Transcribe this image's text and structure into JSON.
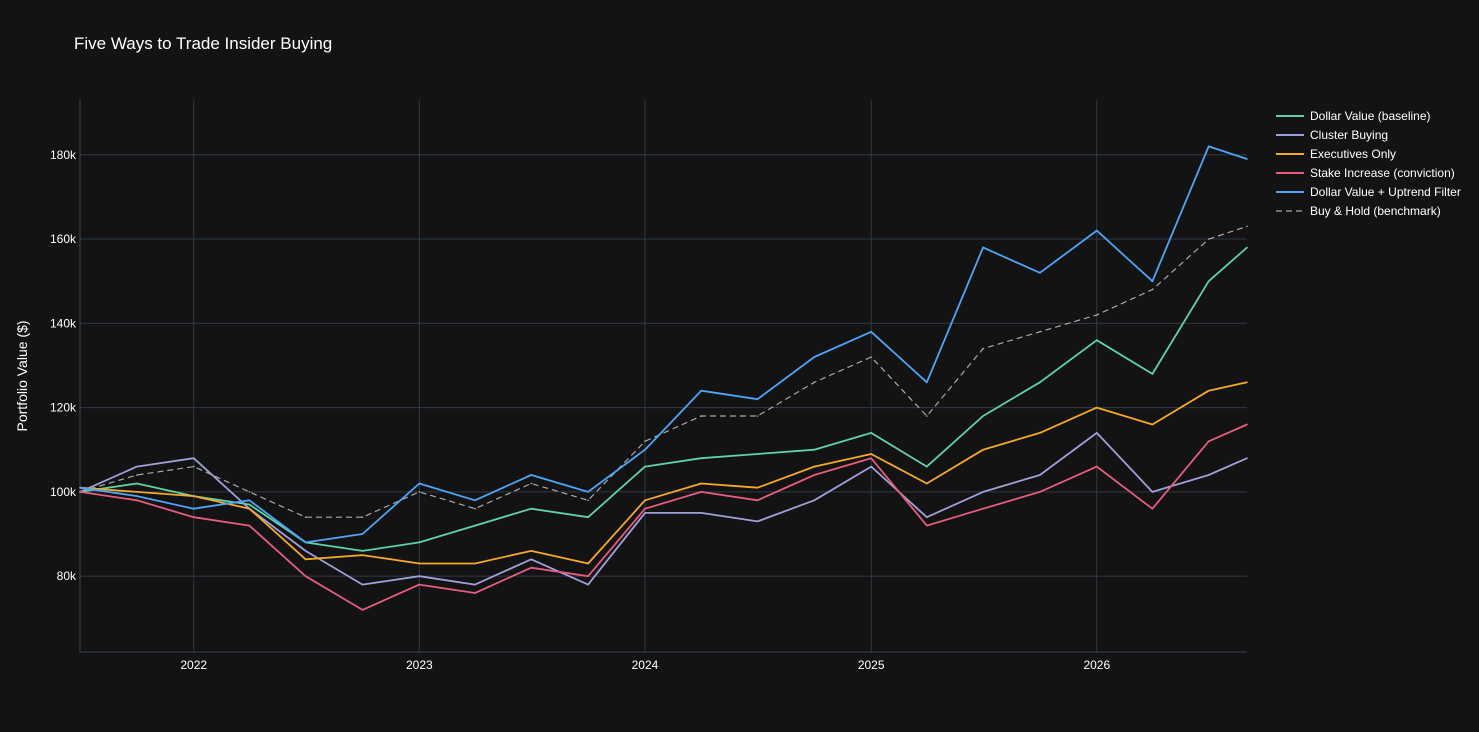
{
  "title": "Five Ways to Trade Insider Buying",
  "chart_data": {
    "type": "line",
    "title": "Five Ways to Trade Insider Buying",
    "xlabel": "",
    "ylabel": "Portfolio Value ($)",
    "xlim": [
      "2021-07-01",
      "2026-09-01"
    ],
    "ylim": [
      62000,
      193000
    ],
    "x_ticks": [
      "2022",
      "2023",
      "2024",
      "2025",
      "2026"
    ],
    "y_ticks": [
      80000,
      100000,
      120000,
      140000,
      160000,
      180000
    ],
    "y_tick_labels": [
      "80k",
      "100k",
      "120k",
      "140k",
      "160k",
      "180k"
    ],
    "grid": true,
    "legend_position": "top-right",
    "x": [
      "2021-07-01",
      "2021-10-01",
      "2022-01-01",
      "2022-04-01",
      "2022-07-01",
      "2022-10-01",
      "2023-01-01",
      "2023-04-01",
      "2023-07-01",
      "2023-10-01",
      "2024-01-01",
      "2024-04-01",
      "2024-07-01",
      "2024-10-01",
      "2025-01-01",
      "2025-04-01",
      "2025-07-01",
      "2025-10-01",
      "2026-01-01",
      "2026-04-01",
      "2026-07-01",
      "2026-09-01"
    ],
    "series": [
      {
        "name": "Dollar Value (baseline)",
        "color": "#5fd3a6",
        "dash": false,
        "values": [
          100000,
          102000,
          99000,
          97000,
          88000,
          86000,
          88000,
          92000,
          96000,
          94000,
          106000,
          108000,
          109000,
          110000,
          114000,
          106000,
          118000,
          126000,
          136000,
          128000,
          150000,
          158000
        ]
      },
      {
        "name": "Cluster Buying",
        "color": "#9f9fdb",
        "dash": false,
        "values": [
          100000,
          106000,
          108000,
          96000,
          86000,
          78000,
          80000,
          78000,
          84000,
          78000,
          95000,
          95000,
          93000,
          98000,
          106000,
          94000,
          100000,
          104000,
          114000,
          100000,
          104000,
          108000
        ]
      },
      {
        "name": "Executives Only",
        "color": "#f6a929",
        "dash": false,
        "values": [
          101000,
          100000,
          99000,
          96000,
          84000,
          85000,
          83000,
          83000,
          86000,
          83000,
          98000,
          102000,
          101000,
          106000,
          109000,
          102000,
          110000,
          114000,
          120000,
          116000,
          124000,
          126000
        ]
      },
      {
        "name": "Stake Increase (conviction)",
        "color": "#e55c7e",
        "dash": false,
        "values": [
          100000,
          98000,
          94000,
          92000,
          80000,
          72000,
          78000,
          76000,
          82000,
          80000,
          96000,
          100000,
          98000,
          104000,
          108000,
          92000,
          96000,
          100000,
          106000,
          96000,
          112000,
          116000
        ]
      },
      {
        "name": "Dollar Value + Uptrend Filter",
        "color": "#4ea4f6",
        "dash": false,
        "values": [
          101000,
          99000,
          96000,
          98000,
          88000,
          90000,
          102000,
          98000,
          104000,
          100000,
          110000,
          124000,
          122000,
          132000,
          138000,
          126000,
          158000,
          152000,
          162000,
          150000,
          182000,
          179000
        ]
      },
      {
        "name": "Buy & Hold (benchmark)",
        "color": "#a8a8a8",
        "dash": true,
        "values": [
          100000,
          104000,
          106000,
          100000,
          94000,
          94000,
          100000,
          96000,
          102000,
          98000,
          112000,
          118000,
          118000,
          126000,
          132000,
          118000,
          134000,
          138000,
          142000,
          148000,
          160000,
          163000
        ]
      }
    ]
  }
}
